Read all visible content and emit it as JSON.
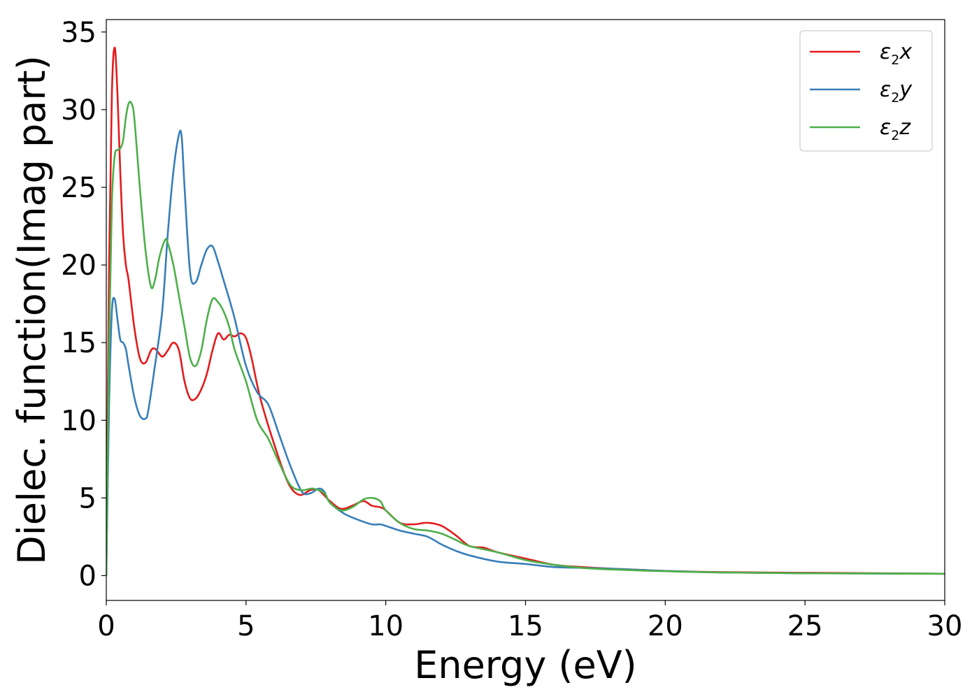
{
  "chart_data": {
    "type": "line",
    "title": "",
    "xlabel": "Energy (eV)",
    "ylabel": "Dielec. function(Imag part)",
    "xlim": [
      0,
      30
    ],
    "ylim": [
      -1.6,
      35.8
    ],
    "xticks": [
      0,
      5,
      10,
      15,
      20,
      25,
      30
    ],
    "yticks": [
      0,
      5,
      10,
      15,
      20,
      25,
      30,
      35
    ],
    "grid": false,
    "legend_position": "top-right",
    "series": [
      {
        "name": "ε2x",
        "legend_base": "ε",
        "legend_sub": "2",
        "legend_tail": "x",
        "color": "#e41a1c",
        "x": [
          0,
          0.1,
          0.2,
          0.3,
          0.4,
          0.5,
          0.6,
          0.7,
          0.8,
          1.0,
          1.2,
          1.4,
          1.6,
          1.75,
          2.0,
          2.2,
          2.4,
          2.6,
          2.8,
          3.0,
          3.2,
          3.4,
          3.6,
          3.8,
          4.0,
          4.2,
          4.4,
          4.6,
          4.8,
          5.0,
          5.2,
          5.5,
          6.0,
          6.5,
          6.9,
          7.3,
          7.6,
          8.0,
          8.4,
          8.8,
          9.2,
          9.5,
          9.8,
          10.0,
          10.5,
          11.0,
          11.5,
          12.0,
          12.5,
          13.0,
          13.5,
          14.0,
          15.0,
          16.0,
          17.0,
          18.0,
          19.0,
          20.0,
          22.0,
          25.0,
          30.0
        ],
        "y": [
          0,
          20,
          31,
          34,
          31,
          26,
          22,
          20,
          19,
          16,
          14,
          13.7,
          14.5,
          14.6,
          14.1,
          14.5,
          15,
          14.5,
          12.5,
          11.4,
          11.4,
          12,
          13,
          14.5,
          15.6,
          15.2,
          15.5,
          15.4,
          15.6,
          15.3,
          14,
          11.5,
          8.5,
          6,
          5.2,
          5.5,
          5.5,
          4.8,
          4.3,
          4.5,
          4.8,
          4.5,
          4.4,
          4.2,
          3.4,
          3.3,
          3.4,
          3.2,
          2.6,
          1.9,
          1.8,
          1.5,
          1.1,
          0.7,
          0.55,
          0.45,
          0.38,
          0.3,
          0.22,
          0.18,
          0.12
        ]
      },
      {
        "name": "ε2y",
        "legend_base": "ε",
        "legend_sub": "2",
        "legend_tail": "y",
        "color": "#377eb8",
        "x": [
          0,
          0.1,
          0.2,
          0.3,
          0.4,
          0.5,
          0.6,
          0.7,
          0.8,
          1.0,
          1.2,
          1.4,
          1.5,
          1.7,
          2.0,
          2.2,
          2.4,
          2.6,
          2.7,
          2.8,
          3.0,
          3.2,
          3.4,
          3.6,
          3.8,
          4.0,
          4.2,
          4.4,
          4.6,
          5.0,
          5.4,
          5.8,
          6.2,
          6.6,
          7.0,
          7.3,
          7.6,
          7.8,
          8.0,
          8.5,
          9.0,
          9.5,
          9.8,
          10.0,
          10.5,
          11.0,
          11.5,
          12.0,
          12.5,
          13.0,
          14.0,
          15.0,
          16.0,
          17.0,
          18.0,
          20.0,
          22.0,
          25.0,
          30.0
        ],
        "y": [
          0,
          11,
          17,
          17.8,
          16.5,
          15.2,
          15,
          14.6,
          13.5,
          11.5,
          10.3,
          10.1,
          10.6,
          13,
          17,
          22,
          26,
          28.4,
          28.2,
          25,
          19.5,
          18.9,
          20,
          21,
          21.2,
          20.2,
          19,
          17.8,
          16.5,
          13.5,
          11.8,
          11,
          9,
          7,
          5.4,
          5.3,
          5.6,
          5.4,
          4.7,
          4.0,
          3.6,
          3.3,
          3.3,
          3.2,
          2.9,
          2.7,
          2.5,
          2.0,
          1.6,
          1.3,
          0.9,
          0.75,
          0.55,
          0.5,
          0.45,
          0.3,
          0.2,
          0.15,
          0.12
        ]
      },
      {
        "name": "ε2z",
        "legend_base": "ε",
        "legend_sub": "2",
        "legend_tail": "z",
        "color": "#4daf4a",
        "x": [
          0,
          0.1,
          0.2,
          0.3,
          0.4,
          0.5,
          0.6,
          0.7,
          0.8,
          0.9,
          1.0,
          1.2,
          1.4,
          1.6,
          1.75,
          1.9,
          2.1,
          2.2,
          2.4,
          2.6,
          2.8,
          3.0,
          3.2,
          3.4,
          3.6,
          3.8,
          4.0,
          4.2,
          4.4,
          4.6,
          5.0,
          5.4,
          5.8,
          6.2,
          6.6,
          7.0,
          7.4,
          7.8,
          8.0,
          8.4,
          8.8,
          9.2,
          9.5,
          9.8,
          10.0,
          10.5,
          11.0,
          11.5,
          12.0,
          12.5,
          13.0,
          14.0,
          15.0,
          16.0,
          17.0,
          18.0,
          20.0,
          22.0,
          25.0,
          30.0
        ],
        "y": [
          0,
          15,
          24,
          27,
          27.4,
          27.5,
          28,
          29.5,
          30.4,
          30.4,
          29.5,
          25,
          21,
          18.6,
          19.1,
          20.5,
          21.6,
          21.4,
          20,
          18,
          16,
          14,
          13.5,
          14.5,
          16.5,
          17.8,
          17.6,
          17,
          16,
          14.5,
          12.5,
          10,
          8.8,
          7.2,
          5.8,
          5.5,
          5.6,
          5.3,
          4.7,
          4.2,
          4.4,
          4.9,
          5.0,
          4.8,
          4.2,
          3.4,
          3.0,
          2.9,
          2.7,
          2.3,
          1.9,
          1.5,
          1.0,
          0.7,
          0.5,
          0.4,
          0.28,
          0.2,
          0.15,
          0.12
        ]
      }
    ]
  }
}
